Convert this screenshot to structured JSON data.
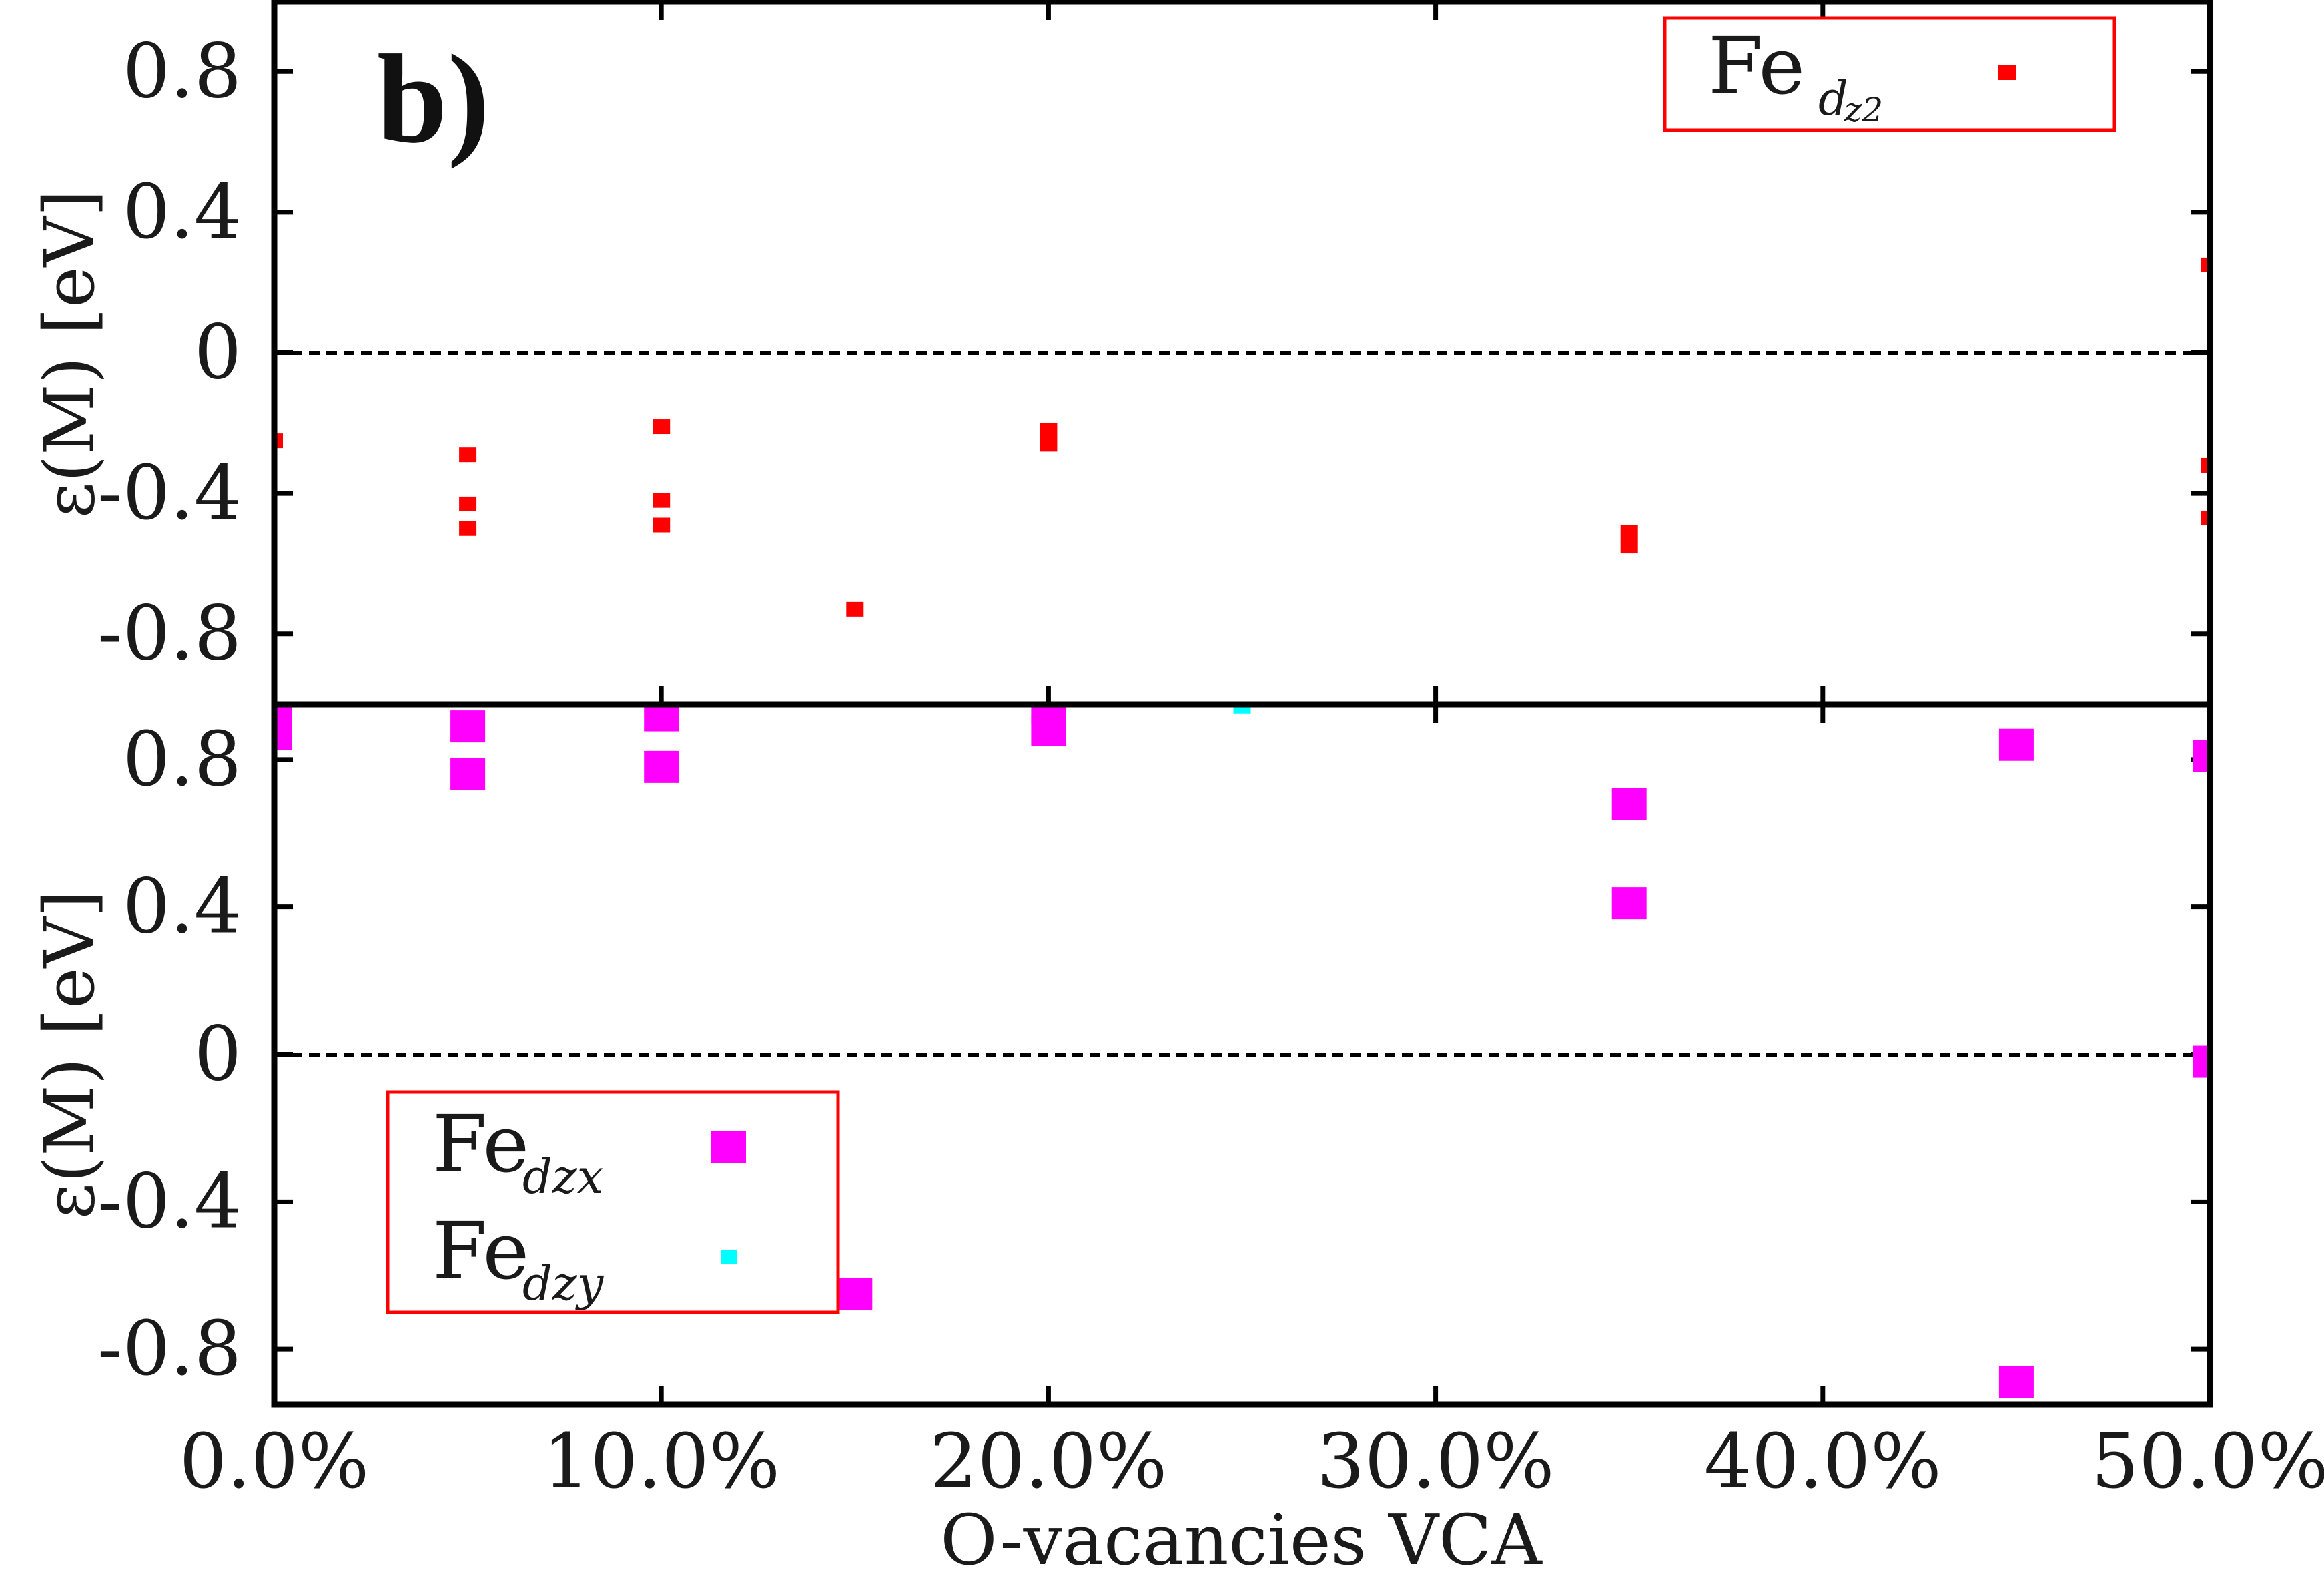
{
  "chart_data": [
    {
      "panel": "top",
      "type": "scatter",
      "panel_label": "b)",
      "ylabel": "ε(M) [eV]",
      "xlabel": "",
      "xlim": [
        0,
        50
      ],
      "ylim": [
        -1.0,
        1.0
      ],
      "yticks": [
        -0.8,
        -0.4,
        0,
        0.4,
        0.8
      ],
      "ytick_labels": [
        "-0.8",
        "-0.4",
        "0",
        "0.4",
        "0.8"
      ],
      "reference_line": 0,
      "legend_position": "top-right",
      "series": [
        {
          "name": "Fe",
          "subscript": "d",
          "subsub": "z2",
          "color": "#ff0000",
          "marker": "small-square",
          "points": [
            [
              0,
              -0.25
            ],
            [
              5,
              -0.29
            ],
            [
              5,
              -0.43
            ],
            [
              5,
              -0.5
            ],
            [
              10,
              -0.21
            ],
            [
              10,
              -0.42
            ],
            [
              10,
              -0.49
            ],
            [
              15,
              -0.73
            ],
            [
              20,
              -0.22
            ],
            [
              20,
              -0.26
            ],
            [
              35,
              -0.51
            ],
            [
              35,
              -0.55
            ],
            [
              50,
              0.25
            ],
            [
              50,
              -0.32
            ],
            [
              50,
              -0.47
            ]
          ]
        }
      ]
    },
    {
      "panel": "bottom",
      "type": "scatter",
      "ylabel": "ε(M) [eV]",
      "xlabel": "O-vacancies VCA",
      "xlim": [
        0,
        50
      ],
      "ylim": [
        -0.95,
        0.95
      ],
      "yticks": [
        -0.8,
        -0.4,
        0,
        0.4,
        0.8
      ],
      "ytick_labels": [
        "-0.8",
        "-0.4",
        "0",
        "0.4",
        "0.8"
      ],
      "xticks": [
        0,
        10,
        20,
        30,
        40,
        50
      ],
      "xtick_labels": [
        "0.0%",
        "10.0%",
        "20.0%",
        "30.0%",
        "40.0%",
        "50.0%"
      ],
      "reference_line": 0,
      "legend_position": "bottom-left",
      "series": [
        {
          "name": "Fe",
          "subscript": "dzx",
          "color": "#ff00ff",
          "marker": "large-square",
          "points": [
            [
              0,
              0.93
            ],
            [
              0,
              0.87
            ],
            [
              5,
              0.89
            ],
            [
              5,
              0.76
            ],
            [
              10,
              0.92
            ],
            [
              10,
              0.78
            ],
            [
              15,
              -0.65
            ],
            [
              20,
              0.94
            ],
            [
              20,
              0.88
            ],
            [
              35,
              0.68
            ],
            [
              35,
              0.41
            ],
            [
              45,
              0.84
            ],
            [
              45,
              -0.89
            ],
            [
              50,
              0.81
            ],
            [
              50,
              -0.02
            ]
          ]
        },
        {
          "name": "Fe",
          "subscript": "dzy",
          "color": "#00ffff",
          "marker": "small-square",
          "points": [
            [
              25,
              0.945
            ]
          ]
        }
      ]
    }
  ]
}
